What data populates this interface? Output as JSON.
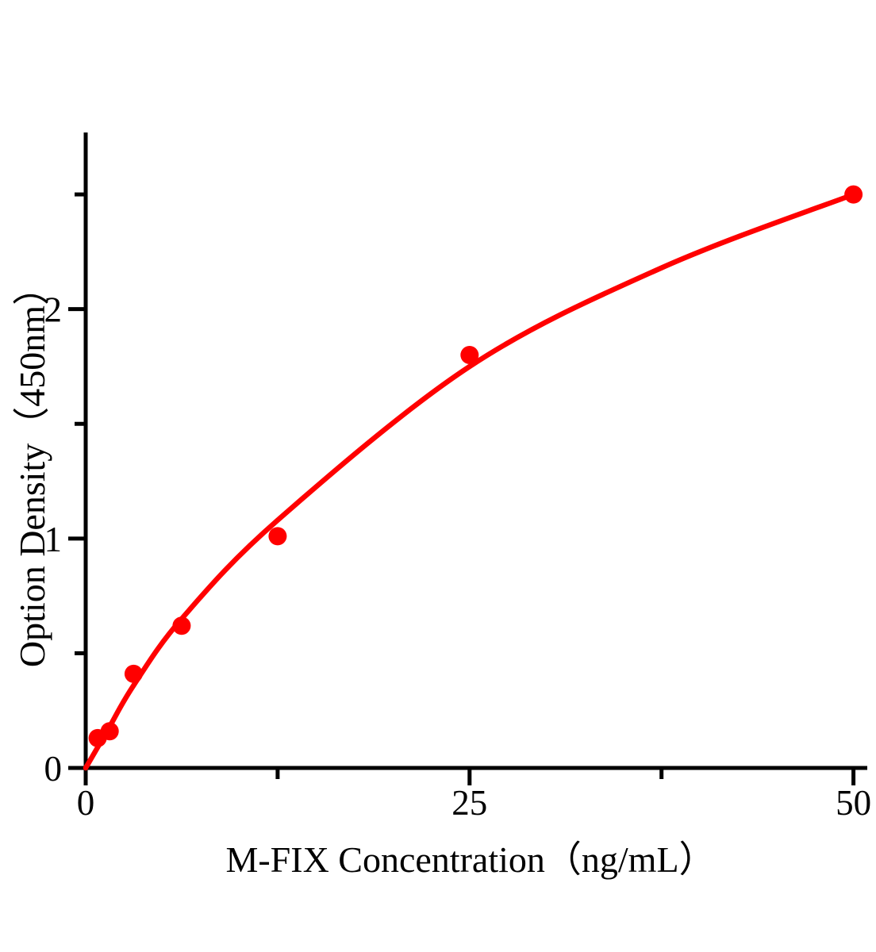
{
  "chart_data": {
    "type": "scatter",
    "title": "",
    "xlabel": "M-FIX Concentration（ng/mL）",
    "ylabel": "Option Density（450nm）",
    "points": [
      {
        "x": 0.78,
        "y": 0.13
      },
      {
        "x": 1.56,
        "y": 0.16
      },
      {
        "x": 3.12,
        "y": 0.41
      },
      {
        "x": 6.25,
        "y": 0.62
      },
      {
        "x": 12.5,
        "y": 1.01
      },
      {
        "x": 25,
        "y": 1.8
      },
      {
        "x": 50,
        "y": 2.5
      }
    ],
    "curve_points": [
      {
        "x": 0,
        "y": 0.0
      },
      {
        "x": 0.78,
        "y": 0.09
      },
      {
        "x": 1.56,
        "y": 0.18
      },
      {
        "x": 3.12,
        "y": 0.36
      },
      {
        "x": 6.25,
        "y": 0.65
      },
      {
        "x": 12.5,
        "y": 1.08
      },
      {
        "x": 25,
        "y": 1.75
      },
      {
        "x": 37.5,
        "y": 2.18
      },
      {
        "x": 50,
        "y": 2.5
      }
    ],
    "xlim": [
      0,
      50.9
    ],
    "ylim": [
      0,
      2.77
    ],
    "x_major_ticks": [
      0,
      25,
      50
    ],
    "x_minor_ticks": [
      12.5,
      37.5
    ],
    "y_major_ticks": [
      0,
      1,
      2
    ],
    "y_minor_ticks": [
      0.5,
      1.5,
      2.5
    ],
    "x_tick_labels": [
      "0",
      "25",
      "50"
    ],
    "y_tick_labels": [
      "0",
      "1",
      "2"
    ],
    "grid": false,
    "legend": null,
    "colors": {
      "curve": "#ff0000",
      "points": "#ff0000",
      "axis": "#000000",
      "text": "#000000",
      "background": "#ffffff"
    }
  }
}
